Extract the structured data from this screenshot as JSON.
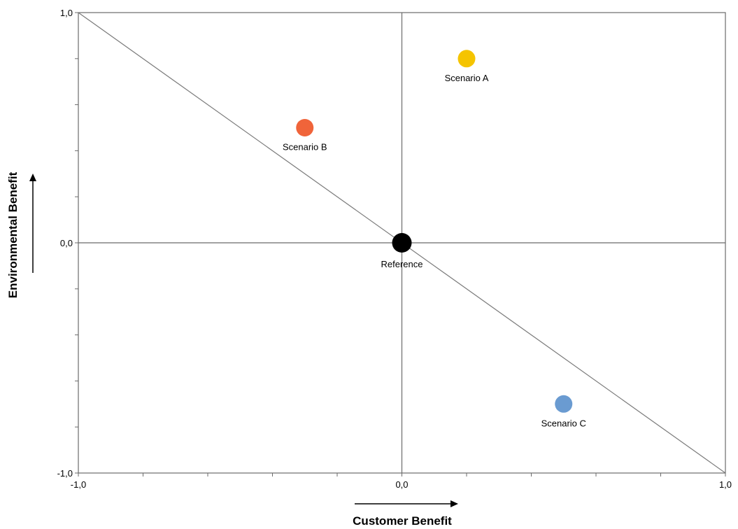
{
  "chart_data": {
    "type": "scatter",
    "xlabel": "Customer Benefit",
    "ylabel": "Environmental Benefit",
    "xlim": [
      -1.0,
      1.0
    ],
    "ylim": [
      -1.0,
      1.0
    ],
    "x_ticks": [
      {
        "value": -1.0,
        "label": "-1,0"
      },
      {
        "value": 0.0,
        "label": "0,0"
      },
      {
        "value": 1.0,
        "label": "1,0"
      }
    ],
    "y_ticks": [
      {
        "value": 1.0,
        "label": "1,0"
      },
      {
        "value": 0.0,
        "label": "0,0"
      },
      {
        "value": -1.0,
        "label": "-1,0"
      }
    ],
    "diagonal_line": {
      "from": [
        -1.0,
        1.0
      ],
      "to": [
        1.0,
        -1.0
      ]
    },
    "grid": false,
    "points": [
      {
        "name": "Scenario A",
        "x": 0.2,
        "y": 0.8,
        "color": "#F5C400"
      },
      {
        "name": "Scenario B",
        "x": -0.3,
        "y": 0.5,
        "color": "#F0643A"
      },
      {
        "name": "Reference",
        "x": 0.0,
        "y": 0.0,
        "color": "#000000"
      },
      {
        "name": "Scenario C",
        "x": 0.5,
        "y": -0.7,
        "color": "#6A9BD1"
      }
    ]
  }
}
